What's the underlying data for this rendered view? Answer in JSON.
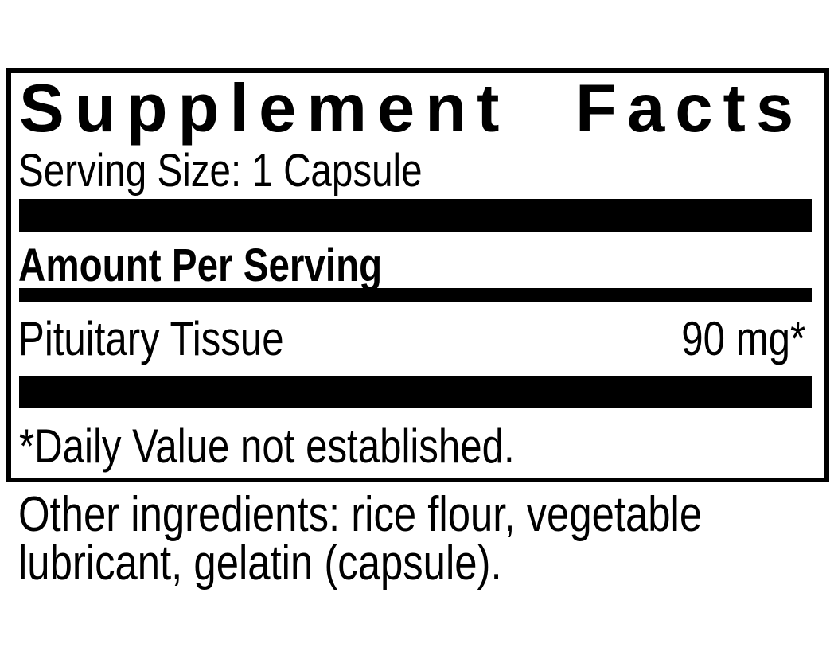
{
  "panel": {
    "title": "Supplement Facts",
    "serving_size": "Serving Size: 1 Capsule",
    "amount_heading": "Amount Per Serving",
    "ingredient": {
      "name": "Pituitary Tissue",
      "amount": "90 mg*"
    },
    "footnote": "*Daily Value not established."
  },
  "other_ingredients": "Other ingredients: rice flour, vegetable lubricant, gelatin (capsule).",
  "colors": {
    "text": "#000000",
    "background": "#ffffff",
    "rule": "#000000"
  }
}
